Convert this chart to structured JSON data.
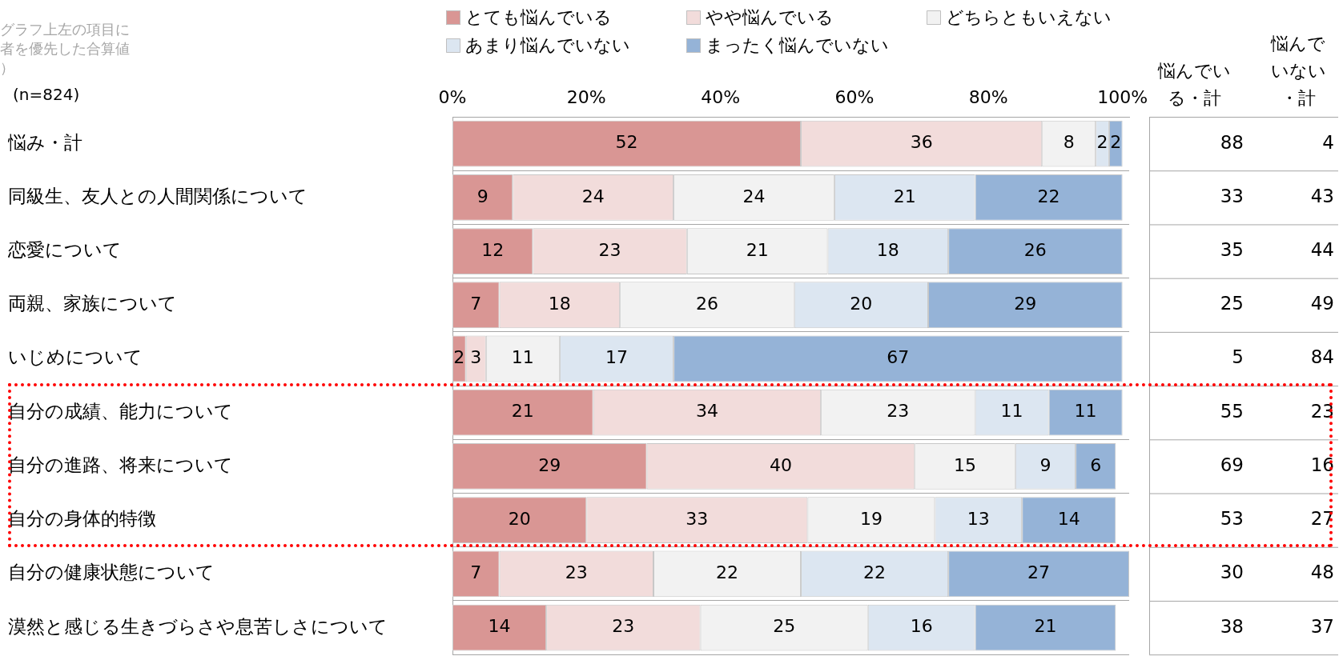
{
  "chart_data": {
    "type": "bar",
    "orientation": "horizontal",
    "stacked": true,
    "categories": [
      "悩み・計",
      "同級生、友人との人間関係について",
      "恋愛について",
      "両親、家族について",
      "いじめについて",
      "自分の成績、能力について",
      "自分の進路、将来について",
      "自分の身体的特徴",
      "自分の健康状態について",
      "漠然と感じる生きづらさや息苦しさについて"
    ],
    "series": [
      {
        "name": "とても悩んでいる",
        "color": "#d99694",
        "values": [
          52,
          9,
          12,
          7,
          2,
          21,
          29,
          20,
          7,
          14
        ]
      },
      {
        "name": "やや悩んでいる",
        "color": "#f2dcdb",
        "values": [
          36,
          24,
          23,
          18,
          3,
          34,
          40,
          33,
          23,
          23
        ]
      },
      {
        "name": "どちらともいえない",
        "color": "#f2f2f2",
        "values": [
          8,
          24,
          21,
          26,
          11,
          23,
          15,
          19,
          22,
          25
        ]
      },
      {
        "name": "あまり悩んでいない",
        "color": "#dce6f1",
        "values": [
          2,
          21,
          18,
          20,
          17,
          11,
          9,
          13,
          22,
          16
        ]
      },
      {
        "name": "まったく悩んでいない",
        "color": "#95b3d7",
        "values": [
          2,
          22,
          26,
          29,
          67,
          11,
          6,
          14,
          27,
          21
        ]
      }
    ],
    "xlim": [
      0,
      101
    ],
    "xticks": [
      {
        "value": 0,
        "label": "0%"
      },
      {
        "value": 20,
        "label": "20%"
      },
      {
        "value": 40,
        "label": "40%"
      },
      {
        "value": 60,
        "label": "60%"
      },
      {
        "value": 80,
        "label": "80%"
      },
      {
        "value": 100,
        "label": "100%"
      }
    ],
    "data_labels": true,
    "legend": "top",
    "grid": "y",
    "annotations": [
      "グラフ上左の項目に者を優先した合算値）",
      "(n=824)",
      "悩んでいる・計",
      "悩んでいない・計",
      "88",
      "4",
      "33",
      "43",
      "35",
      "44",
      "25",
      "49",
      "5",
      "84",
      "55",
      "23",
      "69",
      "16",
      "53",
      "27",
      "30",
      "48",
      "38",
      "37"
    ]
  }
}
